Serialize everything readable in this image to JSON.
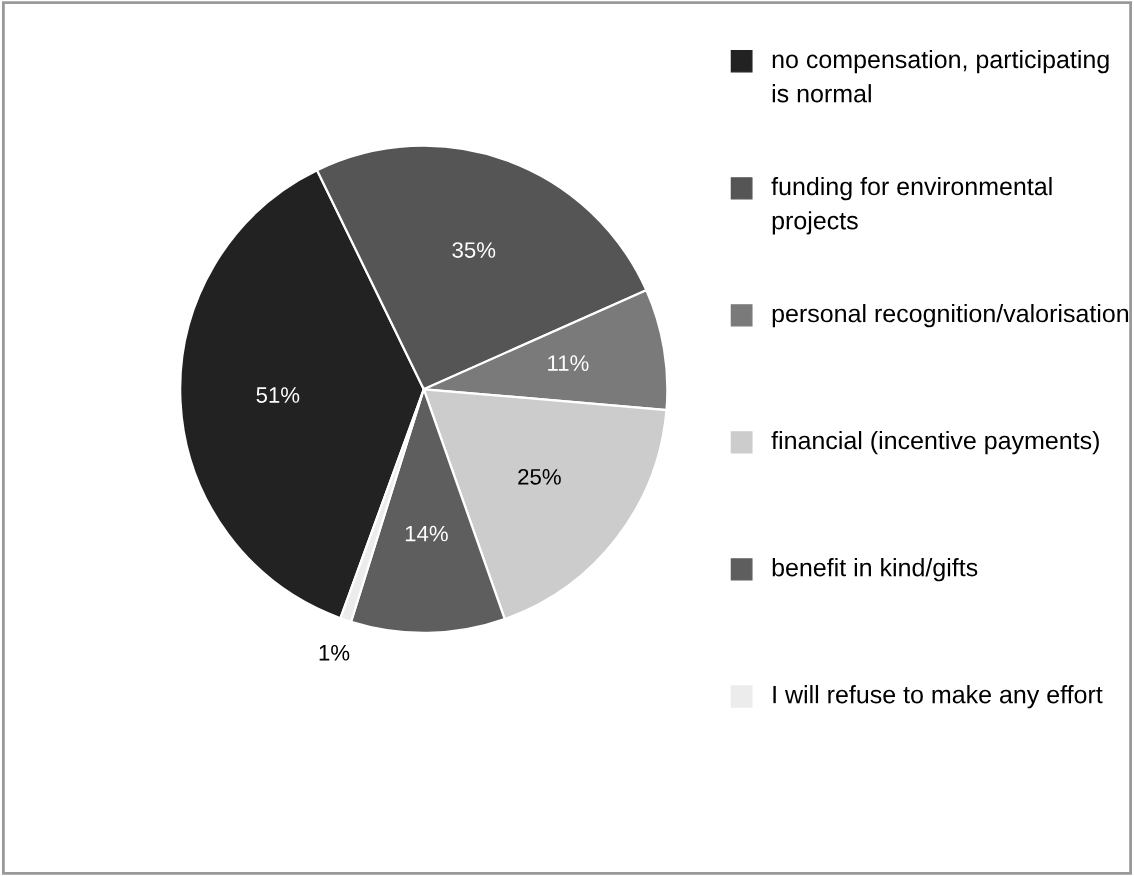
{
  "chart_data": {
    "type": "pie",
    "categories": [
      "no compensation, participating is normal",
      "funding for environmental projects",
      "personal recognition/valorisation",
      "financial (incentive payments)",
      "benefit in kind/gifts",
      "I will refuse to make any effort"
    ],
    "values": [
      51,
      35,
      11,
      25,
      14,
      1
    ],
    "colors": [
      "#222222",
      "#555555",
      "#7a7a7a",
      "#cccccc",
      "#5e5e5e",
      "#ececec"
    ],
    "value_labels": [
      "51%",
      "35%",
      "11%",
      "25%",
      "14%",
      "1%"
    ],
    "legend": "right"
  }
}
